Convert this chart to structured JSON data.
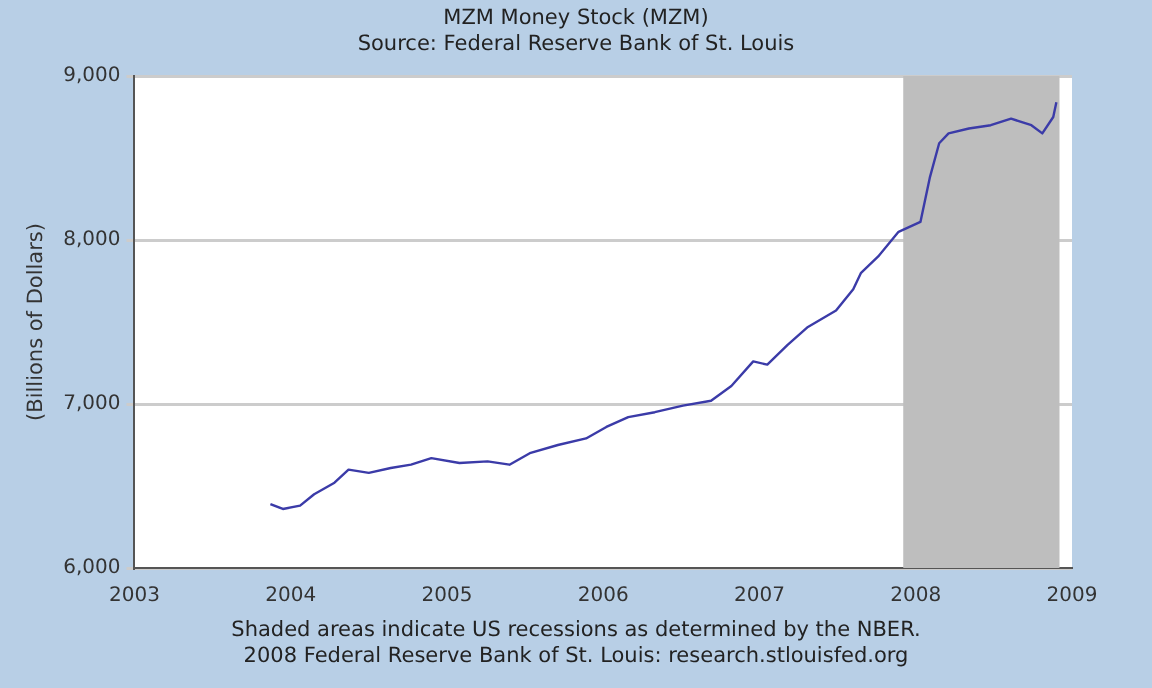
{
  "chart_data": {
    "type": "line",
    "title": "MZM Money Stock (MZM)",
    "subtitle": "Source: Federal Reserve Bank of St. Louis",
    "ylabel": "(Billions of Dollars)",
    "annotations": [
      "Shaded areas indicate US recessions as determined by the NBER.",
      "2008 Federal Reserve Bank of St. Louis: research.stlouisfed.org"
    ],
    "series": [
      {
        "color": "#3b3ba8",
        "x": [
          2003.87,
          2003.95,
          2004.06,
          2004.15,
          2004.28,
          2004.37,
          2004.5,
          2004.64,
          2004.77,
          2004.9,
          2005.08,
          2005.26,
          2005.4,
          2005.53,
          2005.71,
          2005.89,
          2006.02,
          2006.16,
          2006.33,
          2006.51,
          2006.69,
          2006.82,
          2006.96,
          2007.05,
          2007.18,
          2007.31,
          2007.49,
          2007.6,
          2007.65,
          2007.76,
          2007.89,
          2008.03,
          2008.09,
          2008.15,
          2008.21,
          2008.34,
          2008.48,
          2008.61,
          2008.74,
          2008.81,
          2008.88,
          2008.9
        ],
        "values": [
          6390,
          6360,
          6380,
          6450,
          6520,
          6600,
          6580,
          6610,
          6630,
          6670,
          6640,
          6650,
          6630,
          6700,
          6750,
          6790,
          6860,
          6920,
          6950,
          6990,
          7020,
          7110,
          7260,
          7240,
          7360,
          7470,
          7570,
          7700,
          7800,
          7900,
          8050,
          8110,
          8380,
          8590,
          8650,
          8680,
          8700,
          8740,
          8700,
          8650,
          8750,
          8840
        ]
      }
    ],
    "xlim": [
      2003,
      2009
    ],
    "xticks": [
      2003,
      2004,
      2005,
      2006,
      2007,
      2008,
      2009
    ],
    "ylim": [
      6000,
      9000
    ],
    "yticks": [
      {
        "value": 6000,
        "label": "6,000"
      },
      {
        "value": 7000,
        "label": "7,000"
      },
      {
        "value": 8000,
        "label": "8,000"
      },
      {
        "value": 9000,
        "label": "9,000"
      }
    ],
    "bands": [
      {
        "axis": "x",
        "from": 2007.92,
        "to": 2008.92,
        "color": "#bebebe"
      }
    ],
    "grid": "y",
    "legend": false
  }
}
